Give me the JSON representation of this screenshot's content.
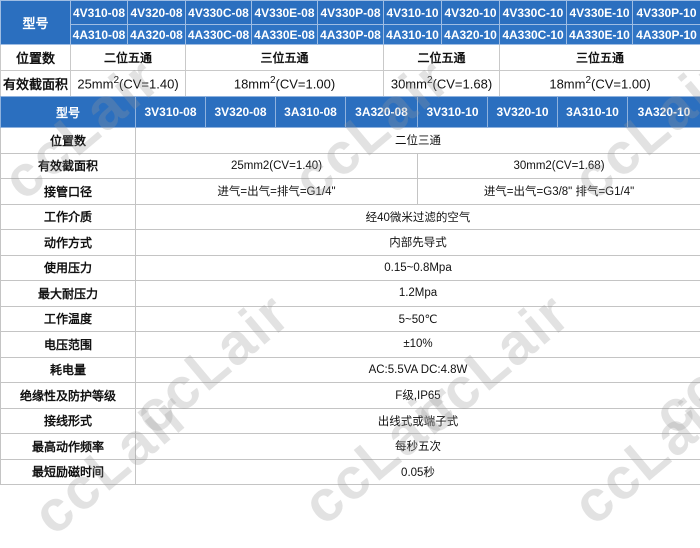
{
  "table_4v": {
    "model_label": "型号",
    "models_v": [
      "4V310-08",
      "4V320-08",
      "4V330C-08",
      "4V330E-08",
      "4V330P-08",
      "4V310-10",
      "4V320-10",
      "4V330C-10",
      "4V330E-10",
      "4V330P-10"
    ],
    "models_a": [
      "4A310-08",
      "4A320-08",
      "4A330C-08",
      "4A330E-08",
      "4A330P-08",
      "4A310-10",
      "4A320-10",
      "4A330C-10",
      "4A330E-10",
      "4A330P-10"
    ],
    "position_label": "位置数",
    "positions": [
      "二位五通",
      "三位五通",
      "二位五通",
      "三位五通"
    ],
    "area_label": "有效截面积",
    "areas": [
      {
        "base": "25mm",
        "sup": "2",
        "rest": "(CV=1.40)"
      },
      {
        "base": "18mm",
        "sup": "2",
        "rest": "(CV=1.00)"
      },
      {
        "base": "30mm",
        "sup": "2",
        "rest": "(CV=1.68)"
      },
      {
        "base": "18mm",
        "sup": "2",
        "rest": "(CV=1.00)"
      }
    ]
  },
  "table_3v": {
    "model_label": "型号",
    "models": [
      "3V310-08",
      "3V320-08",
      "3A310-08",
      "3A320-08",
      "3V310-10",
      "3V320-10",
      "3A310-10",
      "3A320-10"
    ],
    "rows": [
      {
        "label": "位置数",
        "values": [
          "二位三通"
        ]
      },
      {
        "label": "有效截面积",
        "values": [
          "25mm2(CV=1.40)",
          "30mm2(CV=1.68)"
        ]
      },
      {
        "label": "接管口径",
        "values": [
          "进气=出气=排气=G1/4\"",
          "进气=出气=G3/8\" 排气=G1/4\""
        ]
      },
      {
        "label": "工作介质",
        "values": [
          "经40微米过滤的空气"
        ]
      },
      {
        "label": "动作方式",
        "values": [
          "内部先导式"
        ]
      },
      {
        "label": "使用压力",
        "values": [
          "0.15~0.8Mpa"
        ]
      },
      {
        "label": "最大耐压力",
        "values": [
          "1.2Mpa"
        ]
      },
      {
        "label": "工作温度",
        "values": [
          "5~50℃"
        ]
      },
      {
        "label": "电压范围",
        "values": [
          "±10%"
        ]
      },
      {
        "label": "耗电量",
        "values": [
          "AC:5.5VA DC:4.8W"
        ]
      },
      {
        "label": "绝缘性及防护等级",
        "values": [
          "F级,IP65"
        ]
      },
      {
        "label": "接线形式",
        "values": [
          "出线式或端子式"
        ]
      },
      {
        "label": "最高动作频率",
        "values": [
          "每秒五次"
        ]
      },
      {
        "label": "最短励磁时间",
        "values": [
          "0.05秒"
        ]
      }
    ]
  },
  "watermark": "ccLair",
  "colors": {
    "header_blue": "#2b6fbf",
    "header_text": "#ffffff",
    "border": "#c4c4c4"
  }
}
